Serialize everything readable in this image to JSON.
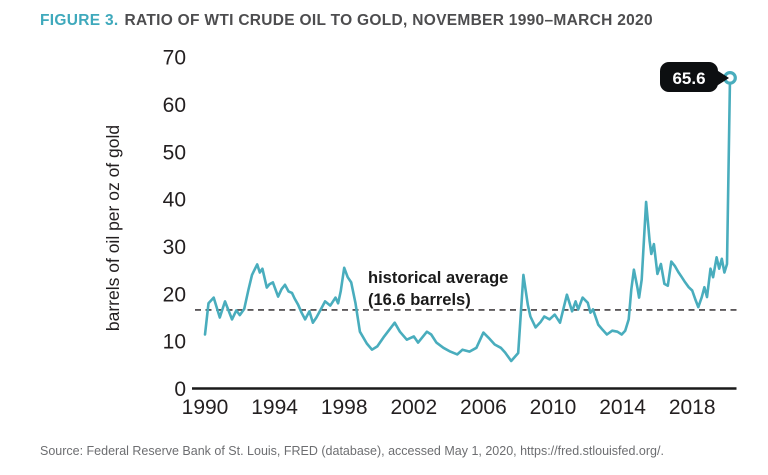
{
  "figure": {
    "label": "FIGURE 3.",
    "title": "RATIO OF WTI CRUDE OIL TO GOLD, NOVEMBER 1990–MARCH 2020",
    "source": "Source: Federal Reserve Bank of St. Louis, FRED (database), accessed May 1, 2020, https://fred.stlouisfed.org/."
  },
  "colors": {
    "line_teal": "#49adbd",
    "figure_label_teal": "#3fa9bc",
    "heading_gray": "#4d4d4f",
    "ink": "#231f20",
    "source_gray": "#6d6e71",
    "callout_bg": "#0d0f11",
    "callout_text": "#ffffff"
  },
  "chart_data": {
    "type": "line",
    "title": "RATIO OF WTI CRUDE OIL TO GOLD, NOVEMBER 1990–MARCH 2020",
    "xlabel": "",
    "ylabel": "barrels of oil per oz of gold",
    "x_ticks": [
      1990,
      1994,
      1998,
      2002,
      2006,
      2010,
      2014,
      2018
    ],
    "y_ticks": [
      0,
      10,
      20,
      30,
      40,
      50,
      60,
      70
    ],
    "xlim": [
      1989.3,
      2020.6
    ],
    "ylim": [
      0,
      70
    ],
    "grid": false,
    "legend": "none",
    "reference_line": {
      "value": 16.6,
      "style": "dashed",
      "label_line1": "historical average",
      "label_line2": "(16.6 barrels)"
    },
    "endpoint_label": "65.6",
    "endpoint_value": 65.6,
    "series": [
      {
        "name": "barrels of WTI crude oil per oz of gold",
        "points": [
          [
            1990.0,
            11.4
          ],
          [
            1990.2,
            18.0
          ],
          [
            1990.5,
            19.2
          ],
          [
            1990.85,
            15.0
          ],
          [
            1991.15,
            18.4
          ],
          [
            1991.55,
            14.6
          ],
          [
            1991.8,
            16.5
          ],
          [
            1992.0,
            15.5
          ],
          [
            1992.25,
            16.8
          ],
          [
            1992.5,
            20.9
          ],
          [
            1992.7,
            24.0
          ],
          [
            1993.0,
            26.2
          ],
          [
            1993.15,
            24.5
          ],
          [
            1993.3,
            25.3
          ],
          [
            1993.55,
            21.3
          ],
          [
            1993.7,
            22.0
          ],
          [
            1993.9,
            22.4
          ],
          [
            1994.2,
            19.4
          ],
          [
            1994.4,
            21.0
          ],
          [
            1994.6,
            21.9
          ],
          [
            1994.8,
            20.5
          ],
          [
            1995.0,
            20.2
          ],
          [
            1995.15,
            19.0
          ],
          [
            1995.35,
            17.7
          ],
          [
            1995.55,
            16.0
          ],
          [
            1995.75,
            14.6
          ],
          [
            1996.0,
            16.3
          ],
          [
            1996.2,
            13.9
          ],
          [
            1996.4,
            15.0
          ],
          [
            1996.6,
            16.3
          ],
          [
            1996.9,
            18.4
          ],
          [
            1997.2,
            17.5
          ],
          [
            1997.5,
            19.2
          ],
          [
            1997.65,
            18.0
          ],
          [
            1997.8,
            20.5
          ],
          [
            1998.0,
            25.5
          ],
          [
            1998.2,
            23.5
          ],
          [
            1998.4,
            22.4
          ],
          [
            1998.65,
            18.0
          ],
          [
            1998.9,
            12.0
          ],
          [
            1999.3,
            9.5
          ],
          [
            1999.6,
            8.2
          ],
          [
            1999.9,
            8.9
          ],
          [
            2000.3,
            11.0
          ],
          [
            2000.9,
            13.9
          ],
          [
            2001.2,
            12.0
          ],
          [
            2001.6,
            10.3
          ],
          [
            2002.0,
            11.0
          ],
          [
            2002.25,
            9.7
          ],
          [
            2002.75,
            12.0
          ],
          [
            2003.0,
            11.4
          ],
          [
            2003.3,
            9.7
          ],
          [
            2003.7,
            8.6
          ],
          [
            2004.1,
            7.8
          ],
          [
            2004.5,
            7.2
          ],
          [
            2004.8,
            8.2
          ],
          [
            2005.2,
            7.8
          ],
          [
            2005.6,
            8.6
          ],
          [
            2006.0,
            11.8
          ],
          [
            2006.3,
            10.7
          ],
          [
            2006.65,
            9.3
          ],
          [
            2007.0,
            8.6
          ],
          [
            2007.25,
            7.6
          ],
          [
            2007.6,
            5.8
          ],
          [
            2008.0,
            7.5
          ],
          [
            2008.3,
            24.0
          ],
          [
            2008.55,
            17.7
          ],
          [
            2008.7,
            15.2
          ],
          [
            2009.0,
            12.9
          ],
          [
            2009.3,
            14.1
          ],
          [
            2009.5,
            15.2
          ],
          [
            2009.8,
            14.6
          ],
          [
            2010.1,
            15.6
          ],
          [
            2010.4,
            13.9
          ],
          [
            2010.8,
            19.8
          ],
          [
            2011.1,
            16.3
          ],
          [
            2011.3,
            18.4
          ],
          [
            2011.45,
            16.7
          ],
          [
            2011.7,
            19.2
          ],
          [
            2012.0,
            18.1
          ],
          [
            2012.15,
            16.0
          ],
          [
            2012.3,
            16.7
          ],
          [
            2012.6,
            13.5
          ],
          [
            2012.85,
            12.4
          ],
          [
            2013.1,
            11.4
          ],
          [
            2013.4,
            12.2
          ],
          [
            2013.7,
            12.0
          ],
          [
            2013.95,
            11.4
          ],
          [
            2014.15,
            12.2
          ],
          [
            2014.35,
            14.6
          ],
          [
            2014.5,
            20.9
          ],
          [
            2014.65,
            25.1
          ],
          [
            2014.85,
            21.3
          ],
          [
            2014.95,
            19.2
          ],
          [
            2015.1,
            23.0
          ],
          [
            2015.35,
            39.4
          ],
          [
            2015.55,
            31.2
          ],
          [
            2015.65,
            28.4
          ],
          [
            2015.8,
            30.5
          ],
          [
            2016.0,
            24.2
          ],
          [
            2016.2,
            26.3
          ],
          [
            2016.4,
            22.1
          ],
          [
            2016.6,
            21.7
          ],
          [
            2016.8,
            26.8
          ],
          [
            2017.0,
            25.9
          ],
          [
            2017.2,
            24.6
          ],
          [
            2017.4,
            23.5
          ],
          [
            2017.6,
            22.4
          ],
          [
            2017.8,
            21.4
          ],
          [
            2018.0,
            20.7
          ],
          [
            2018.2,
            18.6
          ],
          [
            2018.35,
            17.2
          ],
          [
            2018.55,
            19.3
          ],
          [
            2018.7,
            21.4
          ],
          [
            2018.85,
            19.3
          ],
          [
            2019.05,
            25.3
          ],
          [
            2019.2,
            23.5
          ],
          [
            2019.4,
            27.7
          ],
          [
            2019.55,
            25.3
          ],
          [
            2019.7,
            27.4
          ],
          [
            2019.85,
            24.5
          ],
          [
            2020.0,
            26.3
          ],
          [
            2020.17,
            65.6
          ]
        ]
      }
    ]
  }
}
